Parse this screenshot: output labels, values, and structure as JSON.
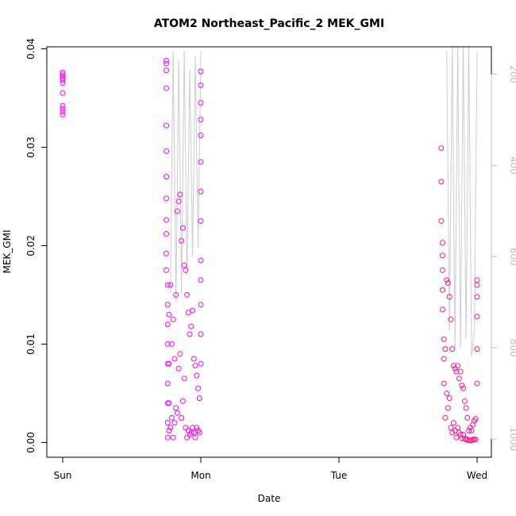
{
  "chart_data": {
    "type": "scatter",
    "title": "ATOM2 Northeast_Pacific_2 MEK_GMI",
    "xlabel": "Date",
    "ylabel": "MEK_GMI",
    "x_ticks": [
      "Sun",
      "Mon",
      "Tue",
      "Wed"
    ],
    "xlim_days": [
      0,
      3.12
    ],
    "ylim": [
      -0.0015,
      0.0402
    ],
    "y_ticks": [
      0.0,
      0.01,
      0.02,
      0.03,
      0.04
    ],
    "y_tick_labels": [
      "0.00",
      "0.01",
      "0.02",
      "0.03",
      "0.04"
    ],
    "right_axis": {
      "label": "",
      "ticks": [
        200,
        400,
        600,
        800,
        1000
      ],
      "tick_labels": [
        "200",
        "400",
        "600",
        "800",
        "1000"
      ],
      "reversed": true,
      "ylim": [
        140,
        1040
      ],
      "color": "#bdbdbd"
    },
    "colors": {
      "early_points": "#ff00ff",
      "late_points": "#ff1493",
      "pressure_line": "#cccccc",
      "axis": "#000000"
    },
    "series": [
      {
        "marker": "open-circle",
        "x_days": [
          0.0,
          0.0,
          0.0,
          0.0,
          0.0,
          0.0,
          0.0,
          0.0,
          0.0,
          0.0,
          0.0
        ],
        "values": [
          0.0333,
          0.0336,
          0.0339,
          0.0342,
          0.0355,
          0.0365,
          0.0368,
          0.037,
          0.0372,
          0.0374,
          0.0376
        ]
      },
      {
        "marker": "open-circle",
        "x_days": [
          0.75,
          0.75,
          0.75,
          0.75,
          0.75,
          0.75,
          0.75,
          0.75,
          0.75,
          0.75,
          0.75,
          0.75,
          0.76,
          0.76,
          0.76,
          0.76,
          0.76,
          0.76,
          0.76,
          0.76,
          0.76,
          0.77,
          0.77,
          0.77,
          0.77,
          0.78,
          0.78,
          0.79,
          0.79,
          0.8,
          0.8,
          0.81,
          0.81,
          0.82,
          0.82,
          0.83,
          0.83,
          0.84,
          0.84,
          0.85,
          0.85,
          0.86,
          0.86,
          0.87,
          0.87,
          0.88,
          0.88,
          0.89,
          0.89,
          0.9,
          0.9,
          0.91,
          0.91,
          0.92,
          0.92,
          0.93,
          0.93,
          0.94,
          0.94,
          0.95,
          0.95,
          0.96,
          0.96,
          0.97,
          0.97,
          0.98,
          0.98,
          0.99,
          0.99,
          1.0,
          1.0,
          1.0,
          1.0,
          1.0,
          1.0,
          1.0,
          1.0,
          1.0,
          1.0,
          1.0,
          1.0,
          1.0
        ],
        "values": [
          0.0388,
          0.0385,
          0.0378,
          0.036,
          0.0322,
          0.0296,
          0.027,
          0.0248,
          0.0226,
          0.0212,
          0.0192,
          0.0175,
          0.016,
          0.014,
          0.012,
          0.01,
          0.008,
          0.006,
          0.004,
          0.002,
          0.0005,
          0.013,
          0.008,
          0.004,
          0.0012,
          0.016,
          0.0015,
          0.01,
          0.0025,
          0.0125,
          0.0005,
          0.0085,
          0.002,
          0.015,
          0.0035,
          0.0235,
          0.003,
          0.0245,
          0.0075,
          0.0252,
          0.009,
          0.0205,
          0.0025,
          0.0218,
          0.0042,
          0.018,
          0.0065,
          0.0175,
          0.0015,
          0.015,
          0.0005,
          0.0132,
          0.0012,
          0.011,
          0.0008,
          0.0118,
          0.001,
          0.0134,
          0.0015,
          0.0085,
          0.001,
          0.0078,
          0.0005,
          0.0068,
          0.0015,
          0.0055,
          0.0012,
          0.0045,
          0.001,
          0.0377,
          0.0363,
          0.0345,
          0.0328,
          0.0312,
          0.0285,
          0.0255,
          0.0225,
          0.0185,
          0.0165,
          0.014,
          0.011,
          0.008
        ]
      },
      {
        "marker": "open-circle",
        "x_days": [
          2.74,
          2.74,
          2.74,
          2.75,
          2.75,
          2.75,
          2.75,
          2.75,
          2.76,
          2.76,
          2.76,
          2.77,
          2.77,
          2.78,
          2.78,
          2.79,
          2.79,
          2.8,
          2.8,
          2.81,
          2.81,
          2.82,
          2.82,
          2.83,
          2.83,
          2.84,
          2.84,
          2.85,
          2.85,
          2.86,
          2.86,
          2.87,
          2.87,
          2.88,
          2.88,
          2.89,
          2.89,
          2.9,
          2.9,
          2.91,
          2.91,
          2.92,
          2.92,
          2.93,
          2.93,
          2.94,
          2.94,
          2.95,
          2.95,
          2.96,
          2.96,
          2.97,
          2.97,
          2.98,
          2.98,
          2.99,
          2.99,
          3.0,
          3.0,
          3.0,
          3.0,
          3.0,
          3.0
        ],
        "values": [
          0.0299,
          0.0265,
          0.0225,
          0.0203,
          0.019,
          0.0175,
          0.0155,
          0.0135,
          0.0105,
          0.0085,
          0.006,
          0.0095,
          0.0025,
          0.0165,
          0.005,
          0.0162,
          0.0035,
          0.0148,
          0.0045,
          0.0125,
          0.0015,
          0.0095,
          0.001,
          0.0078,
          0.002,
          0.0075,
          0.0012,
          0.0072,
          0.0005,
          0.0078,
          0.0015,
          0.0065,
          0.001,
          0.0072,
          0.0008,
          0.0058,
          0.0004,
          0.0055,
          0.0008,
          0.0042,
          0.0004,
          0.0035,
          0.0003,
          0.0025,
          0.0003,
          0.0012,
          0.0002,
          0.0015,
          0.0002,
          0.0012,
          0.0002,
          0.0018,
          0.0003,
          0.0022,
          0.0003,
          0.0024,
          0.0003,
          0.0165,
          0.016,
          0.0148,
          0.0128,
          0.0095,
          0.006
        ]
      }
    ],
    "pressure_trace": {
      "x_days": [
        0.78,
        0.8,
        0.82,
        0.84,
        0.86,
        0.88,
        0.9,
        0.92,
        0.94,
        0.96,
        0.98,
        1.0,
        2.78,
        2.8,
        2.82,
        2.84,
        2.86,
        2.88,
        2.9,
        2.92,
        2.94,
        2.96,
        2.98,
        3.0
      ],
      "values": [
        680,
        150,
        700,
        170,
        680,
        150,
        640,
        190,
        600,
        160,
        580,
        150,
        150,
        760,
        140,
        800,
        140,
        800,
        140,
        780,
        140,
        820,
        760,
        150
      ]
    }
  }
}
